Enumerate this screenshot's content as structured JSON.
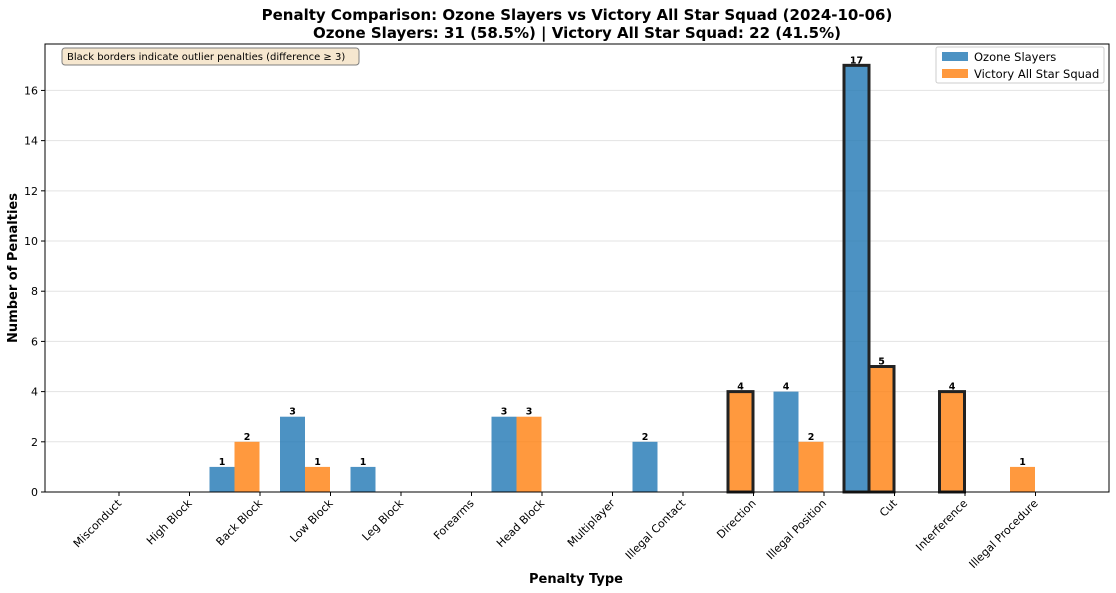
{
  "chart_data": {
    "type": "bar",
    "title": "Penalty Comparison: Ozone Slayers vs Victory All Star Squad (2024-10-06)",
    "subtitle": "Ozone Slayers: 31 (58.5%) | Victory All Star Squad: 22 (41.5%)",
    "xlabel": "Penalty Type",
    "ylabel": "Number of Penalties",
    "ylim": [
      0,
      17.85
    ],
    "yticks": [
      0,
      2,
      4,
      6,
      8,
      10,
      12,
      14,
      16
    ],
    "grid": "horizontal",
    "legend_position": "top-right",
    "annotation": "Black borders indicate outlier penalties (difference ≥ 3)",
    "categories": [
      "Misconduct",
      "High Block",
      "Back Block",
      "Low Block",
      "Leg Block",
      "Forearms",
      "Head Block",
      "Multiplayer",
      "Illegal Contact",
      "Direction",
      "Illegal Position",
      "Cut",
      "Interference",
      "Illegal Procedure"
    ],
    "series": [
      {
        "name": "Ozone Slayers",
        "color": "#1f77b4",
        "values": [
          0,
          1,
          3,
          1,
          0,
          3,
          0,
          2,
          0,
          4,
          17,
          0,
          0,
          0
        ]
      },
      {
        "name": "Victory All Star Squad",
        "color": "#ff7f0e",
        "values": [
          0,
          2,
          1,
          0,
          0,
          3,
          0,
          0,
          4,
          2,
          5,
          4,
          1,
          0
        ]
      }
    ],
    "outlier_categories": [
      "Illegal Contact",
      "Illegal Position",
      "Cut"
    ]
  }
}
